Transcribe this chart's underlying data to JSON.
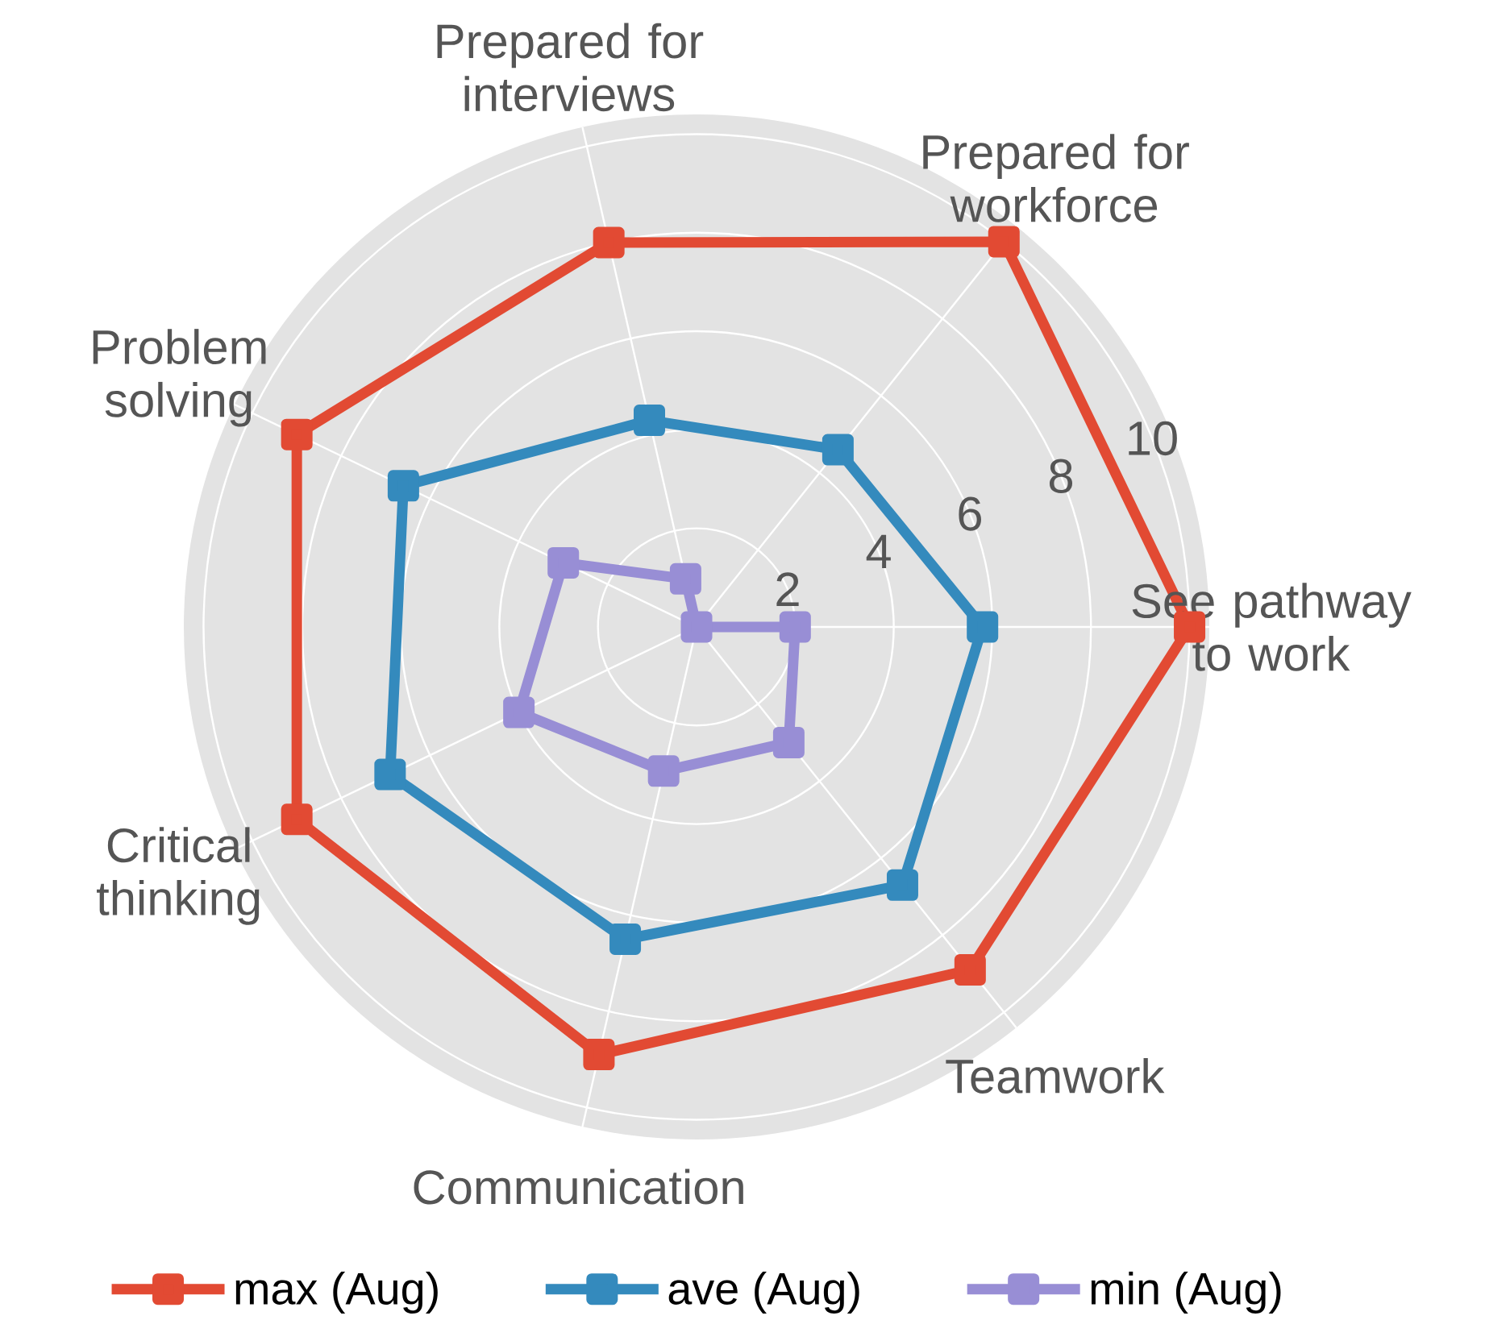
{
  "chart_data": {
    "type": "radar",
    "categories": [
      "Prepared for workforce",
      "See pathway to work",
      "Teamwork",
      "Communication",
      "Critical thinking",
      "Problem solving",
      "Prepared for interviews"
    ],
    "series": [
      {
        "name": "max (Aug)",
        "color": "#e24a33",
        "values": [
          10,
          10,
          8.9,
          8.9,
          9,
          9,
          8
        ]
      },
      {
        "name": "ave (Aug)",
        "color": "#348abd",
        "values": [
          4.6,
          5.8,
          6.7,
          6.5,
          6.9,
          6.6,
          4.3
        ]
      },
      {
        "name": "min (Aug)",
        "color": "#988ed5",
        "values": [
          0,
          2,
          3,
          3,
          4,
          3,
          1
        ]
      }
    ],
    "ylim": [
      0,
      10.4
    ],
    "yticks": [
      2,
      4,
      6,
      8,
      10
    ],
    "grid": true,
    "legend": "bottom",
    "marker": "square",
    "line_style": "solid"
  }
}
